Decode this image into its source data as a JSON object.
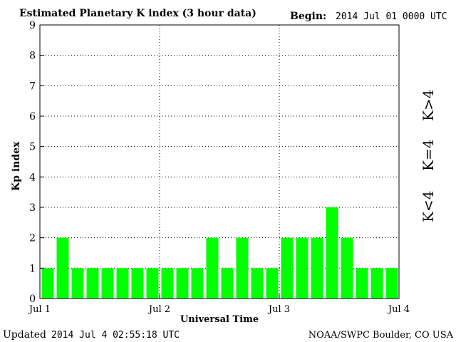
{
  "header": {
    "title": "Estimated Planetary K index (3 hour data)",
    "begin_label": "Begin:",
    "begin_value": "2014 Jul 01 0000 UTC"
  },
  "footer": {
    "updated_label": "Updated",
    "updated_value": "2014 Jul  4 02:55:18 UTC",
    "source": "NOAA/SWPC Boulder, CO USA"
  },
  "legend": {
    "high": {
      "label": "K>4",
      "color": "#ff2200"
    },
    "equal": {
      "label": "K=4",
      "color": "#ffcc00"
    },
    "low": {
      "label": "K<4",
      "color": "#00ff00"
    }
  },
  "chart_data": {
    "type": "bar",
    "title": "Estimated Planetary K index (3 hour data)",
    "xlabel": "Universal Time",
    "ylabel": "Kp index",
    "ylim": [
      0,
      9
    ],
    "yticks": [
      "0",
      "1",
      "2",
      "3",
      "4",
      "5",
      "6",
      "7",
      "8",
      "9"
    ],
    "xlim": [
      "2014-07-01 00:00",
      "2014-07-04 00:00"
    ],
    "xticks": [
      "Jul 1",
      "Jul 2",
      "Jul 3",
      "Jul 4"
    ],
    "grid": true,
    "bar_interval_hours": 3,
    "values": [
      1,
      2,
      1,
      1,
      1,
      1,
      1,
      1,
      1,
      1,
      1,
      2,
      1,
      2,
      1,
      1,
      2,
      2,
      2,
      3,
      2,
      1,
      1,
      1
    ],
    "bar_color": "#00ff00"
  }
}
